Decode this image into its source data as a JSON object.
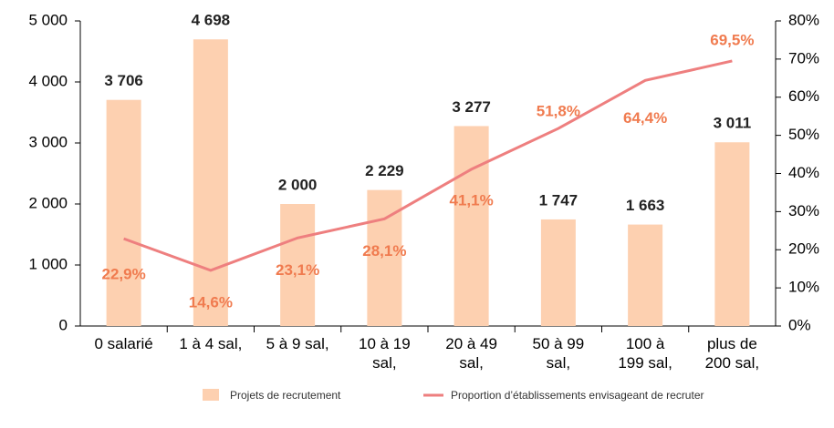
{
  "chart_data": {
    "type": "bar_line",
    "categories": [
      "0 salarié",
      "1 à 4 sal,",
      "5 à 9 sal,",
      "10 à 19\nsal,",
      "20 à 49\nsal,",
      "50 à 99\nsal,",
      "100 à\n199 sal,",
      "plus de\n200 sal,"
    ],
    "series": [
      {
        "name": "Projets de recrutement",
        "type": "bar",
        "color": "#fdd0b0",
        "values": [
          3706,
          4698,
          2000,
          2229,
          3277,
          1747,
          1663,
          3011
        ],
        "value_labels": [
          "3 706",
          "4 698",
          "2 000",
          "2 229",
          "3 277",
          "1 747",
          "1 663",
          "3 011"
        ]
      },
      {
        "name": "Proportion d’établissements envisageant de recruter",
        "type": "line",
        "axis": "y2",
        "color": "#ee7f7f",
        "label_color": "#f07b4f",
        "values": [
          22.9,
          14.6,
          23.1,
          28.1,
          41.1,
          51.8,
          64.4,
          69.5
        ],
        "value_labels": [
          "22,9%",
          "14,6%",
          "23,1%",
          "28,1%",
          "41,1%",
          "51,8%",
          "64,4%",
          "69,5%"
        ]
      }
    ],
    "ylim": [
      0,
      5000
    ],
    "yticks": [
      {
        "value": 0,
        "label": "0"
      },
      {
        "value": 1000,
        "label": "1 000"
      },
      {
        "value": 2000,
        "label": "2 000"
      },
      {
        "value": 3000,
        "label": "3 000"
      },
      {
        "value": 4000,
        "label": "4 000"
      },
      {
        "value": 5000,
        "label": "5 000"
      }
    ],
    "y2lim": [
      0,
      80
    ],
    "y2ticks": [
      {
        "value": 0,
        "label": "0%"
      },
      {
        "value": 10,
        "label": "10%"
      },
      {
        "value": 20,
        "label": "20%"
      },
      {
        "value": 30,
        "label": "30%"
      },
      {
        "value": 40,
        "label": "40%"
      },
      {
        "value": 50,
        "label": "50%"
      },
      {
        "value": 60,
        "label": "60%"
      },
      {
        "value": 70,
        "label": "70%"
      },
      {
        "value": 80,
        "label": "80%"
      }
    ],
    "legend": "bottom"
  }
}
